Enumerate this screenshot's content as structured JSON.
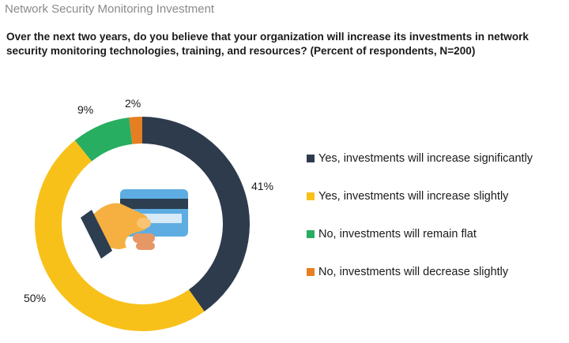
{
  "header": {
    "title": "Network Security Monitoring Investment"
  },
  "question": "Over the next two years, do you believe that your organization will increase its investments in network security monitoring technologies, training, and resources? (Percent of respondents, N=200)",
  "chart_data": {
    "type": "pie",
    "variant": "donut",
    "categories": [
      "Yes, investments will increase significantly",
      "Yes, investments will increase slightly",
      "No, investments will remain flat",
      "No, investments will decrease slightly"
    ],
    "values": [
      41,
      50,
      9,
      2
    ],
    "labels": [
      "41%",
      "50%",
      "9%",
      "2%"
    ],
    "colors": [
      "#2e3b4c",
      "#f8c11a",
      "#27ae60",
      "#e67e22"
    ],
    "legend_position": "right",
    "start": "top, clockwise",
    "center_icon": "hand-holding-credit-card-icon"
  }
}
